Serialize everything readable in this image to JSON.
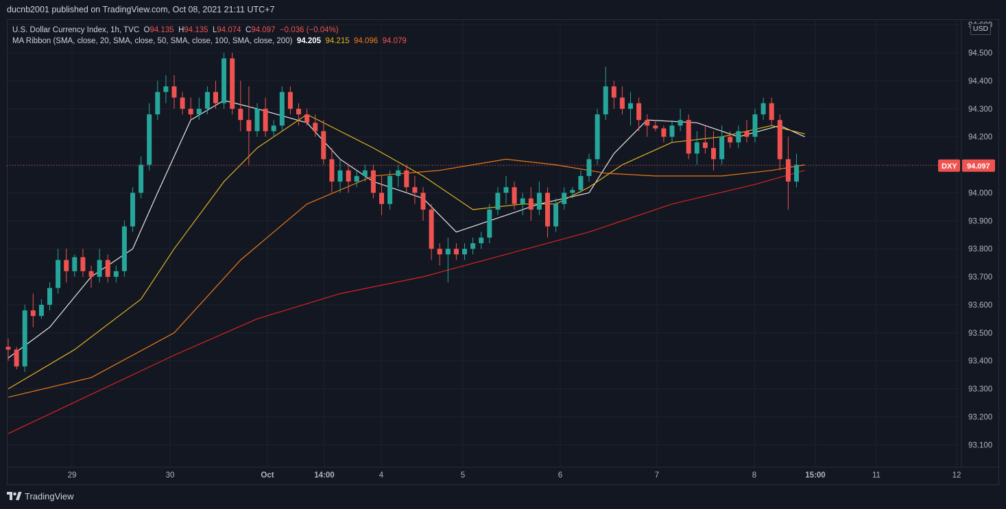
{
  "header": {
    "publisher_line": "ducnb2001 published on TradingView.com, Oct 08, 2021 21:11 UTC+7"
  },
  "legend": {
    "symbol": "U.S. Dollar Currency Index, 1h, TVC",
    "o_label": "O",
    "o_value": "94.135",
    "h_label": "H",
    "h_value": "94.135",
    "l_label": "L",
    "l_value": "94.074",
    "c_label": "C",
    "c_value": "94.097",
    "change": "−0.036 (−0.04%)",
    "ma_ribbon": "MA Ribbon (SMA, close, 20, SMA, close, 50, SMA, close, 100, SMA, close, 200)",
    "ma20": "94.205",
    "ma50": "94.215",
    "ma100": "94.096",
    "ma200": "94.079"
  },
  "currency_label": "USD",
  "price_tag": {
    "symbol": "DXY",
    "value": "94.097"
  },
  "footer": {
    "brand": "TradingView"
  },
  "colors": {
    "background": "#131722",
    "grid": "#1e222d",
    "up": "#26a69a",
    "down": "#ef5350",
    "ma20": "#e8e8e8",
    "ma50": "#e3b421",
    "ma100": "#f07a16",
    "ma200": "#d9231e",
    "price_line": "#ef5350"
  },
  "chart_data": {
    "type": "candlestick",
    "y_axis": {
      "range": [
        93.02,
        94.62
      ],
      "ticks": [
        "94.600",
        "94.500",
        "94.400",
        "94.300",
        "94.200",
        "94.100",
        "94.000",
        "93.900",
        "93.800",
        "93.700",
        "93.600",
        "93.500",
        "93.400",
        "93.300",
        "93.200",
        "93.100"
      ],
      "tick_values": [
        94.6,
        94.5,
        94.4,
        94.3,
        94.2,
        94.1,
        94.0,
        93.9,
        93.8,
        93.7,
        93.6,
        93.5,
        93.4,
        93.3,
        93.2,
        93.1
      ]
    },
    "x_axis": {
      "labels": [
        "29",
        "30",
        "Oct",
        "14:00",
        "4",
        "5",
        "6",
        "7",
        "8",
        "15:00",
        "11",
        "12"
      ],
      "bold_labels": [
        "Oct",
        "14:00",
        "15:00"
      ]
    },
    "last_price": 94.097,
    "candles": [
      [
        93.45,
        93.48,
        93.4,
        93.44
      ],
      [
        93.44,
        93.45,
        93.37,
        93.38
      ],
      [
        93.38,
        93.6,
        93.36,
        93.58
      ],
      [
        93.58,
        93.64,
        93.52,
        93.56
      ],
      [
        93.56,
        93.62,
        93.55,
        93.6
      ],
      [
        93.6,
        93.68,
        93.58,
        93.66
      ],
      [
        93.66,
        93.8,
        93.64,
        93.76
      ],
      [
        93.76,
        93.8,
        93.68,
        93.72
      ],
      [
        93.72,
        93.78,
        93.7,
        93.77
      ],
      [
        93.77,
        93.8,
        93.7,
        93.72
      ],
      [
        93.72,
        93.74,
        93.66,
        93.7
      ],
      [
        93.7,
        93.8,
        93.68,
        93.76
      ],
      [
        93.76,
        93.78,
        93.68,
        93.7
      ],
      [
        93.7,
        93.74,
        93.68,
        93.72
      ],
      [
        93.72,
        93.9,
        93.7,
        93.88
      ],
      [
        93.88,
        94.02,
        93.86,
        94.0
      ],
      [
        94.0,
        94.13,
        93.98,
        94.1
      ],
      [
        94.1,
        94.32,
        94.08,
        94.28
      ],
      [
        94.28,
        94.4,
        94.26,
        94.36
      ],
      [
        94.36,
        94.42,
        94.32,
        94.38
      ],
      [
        94.38,
        94.42,
        94.3,
        94.34
      ],
      [
        94.34,
        94.36,
        94.28,
        94.3
      ],
      [
        94.3,
        94.34,
        94.26,
        94.28
      ],
      [
        94.28,
        94.34,
        94.26,
        94.3
      ],
      [
        94.3,
        94.38,
        94.28,
        94.36
      ],
      [
        94.36,
        94.4,
        94.3,
        94.32
      ],
      [
        94.32,
        94.5,
        94.3,
        94.48
      ],
      [
        94.48,
        94.5,
        94.28,
        94.3
      ],
      [
        94.3,
        94.4,
        94.22,
        94.26
      ],
      [
        94.26,
        94.38,
        94.1,
        94.22
      ],
      [
        94.22,
        94.32,
        94.2,
        94.3
      ],
      [
        94.3,
        94.34,
        94.2,
        94.22
      ],
      [
        94.22,
        94.26,
        94.2,
        94.24
      ],
      [
        94.24,
        94.38,
        94.22,
        94.36
      ],
      [
        94.36,
        94.38,
        94.28,
        94.3
      ],
      [
        94.3,
        94.32,
        94.24,
        94.28
      ],
      [
        94.28,
        94.3,
        94.24,
        94.25
      ],
      [
        94.25,
        94.28,
        94.2,
        94.22
      ],
      [
        94.22,
        94.26,
        94.1,
        94.12
      ],
      [
        94.12,
        94.16,
        94.0,
        94.04
      ],
      [
        94.04,
        94.12,
        94.0,
        94.08
      ],
      [
        94.08,
        94.1,
        94.0,
        94.04
      ],
      [
        94.04,
        94.08,
        94.02,
        94.06
      ],
      [
        94.06,
        94.1,
        94.04,
        94.08
      ],
      [
        94.08,
        94.1,
        93.98,
        94.0
      ],
      [
        94.0,
        94.06,
        93.92,
        93.96
      ],
      [
        93.96,
        94.08,
        93.94,
        94.06
      ],
      [
        94.06,
        94.1,
        94.02,
        94.08
      ],
      [
        94.08,
        94.1,
        94.0,
        94.02
      ],
      [
        94.02,
        94.06,
        93.96,
        94.0
      ],
      [
        94.0,
        94.02,
        93.9,
        93.94
      ],
      [
        93.94,
        93.96,
        93.76,
        93.8
      ],
      [
        93.8,
        93.82,
        93.74,
        93.78
      ],
      [
        93.78,
        93.84,
        93.68,
        93.8
      ],
      [
        93.8,
        93.82,
        93.76,
        93.78
      ],
      [
        93.78,
        93.82,
        93.76,
        93.8
      ],
      [
        93.8,
        93.84,
        93.78,
        93.82
      ],
      [
        93.82,
        93.86,
        93.8,
        93.84
      ],
      [
        93.84,
        93.96,
        93.82,
        93.94
      ],
      [
        93.94,
        94.02,
        93.92,
        94.0
      ],
      [
        94.0,
        94.06,
        93.96,
        94.02
      ],
      [
        94.02,
        94.04,
        93.94,
        93.96
      ],
      [
        93.96,
        94.0,
        93.92,
        93.98
      ],
      [
        93.98,
        94.02,
        93.9,
        93.94
      ],
      [
        93.94,
        94.04,
        93.92,
        94.0
      ],
      [
        94.0,
        94.02,
        93.84,
        93.88
      ],
      [
        93.88,
        93.98,
        93.86,
        93.96
      ],
      [
        93.96,
        94.02,
        93.94,
        94.0
      ],
      [
        94.0,
        94.02,
        93.98,
        94.01
      ],
      [
        94.01,
        94.08,
        94.0,
        94.06
      ],
      [
        94.06,
        94.14,
        94.04,
        94.12
      ],
      [
        94.12,
        94.3,
        94.1,
        94.28
      ],
      [
        94.28,
        94.45,
        94.26,
        94.38
      ],
      [
        94.38,
        94.4,
        94.3,
        94.34
      ],
      [
        94.34,
        94.38,
        94.28,
        94.3
      ],
      [
        94.3,
        94.36,
        94.24,
        94.32
      ],
      [
        94.32,
        94.34,
        94.22,
        94.26
      ],
      [
        94.26,
        94.28,
        94.2,
        94.24
      ],
      [
        94.24,
        94.26,
        94.22,
        94.23
      ],
      [
        94.23,
        94.24,
        94.18,
        94.2
      ],
      [
        94.2,
        94.26,
        94.18,
        94.24
      ],
      [
        94.24,
        94.3,
        94.22,
        94.26
      ],
      [
        94.26,
        94.28,
        94.12,
        94.14
      ],
      [
        94.14,
        94.22,
        94.1,
        94.18
      ],
      [
        94.18,
        94.24,
        94.14,
        94.16
      ],
      [
        94.16,
        94.22,
        94.08,
        94.12
      ],
      [
        94.12,
        94.24,
        94.1,
        94.2
      ],
      [
        94.2,
        94.22,
        94.16,
        94.18
      ],
      [
        94.18,
        94.24,
        94.16,
        94.22
      ],
      [
        94.22,
        94.26,
        94.18,
        94.2
      ],
      [
        94.2,
        94.3,
        94.18,
        94.28
      ],
      [
        94.28,
        94.34,
        94.26,
        94.32
      ],
      [
        94.32,
        94.34,
        94.24,
        94.26
      ],
      [
        94.26,
        94.28,
        94.08,
        94.12
      ],
      [
        94.12,
        94.2,
        93.94,
        94.04
      ],
      [
        94.04,
        94.14,
        94.02,
        94.1
      ]
    ],
    "moving_averages": [
      {
        "name": "SMA 20",
        "color": "#e8e8e8",
        "x": [
          0,
          5,
          10,
          15,
          18,
          22,
          26,
          30,
          36,
          40,
          44,
          50,
          54,
          58,
          64,
          70,
          73,
          77,
          83,
          88,
          93,
          96
        ],
        "y": [
          93.41,
          93.52,
          93.7,
          93.8,
          94.0,
          94.26,
          94.33,
          94.3,
          94.25,
          94.12,
          94.04,
          93.98,
          93.86,
          93.9,
          93.96,
          94.0,
          94.14,
          94.26,
          94.25,
          94.2,
          94.24,
          94.2
        ]
      },
      {
        "name": "SMA 50",
        "color": "#e3b421",
        "x": [
          0,
          8,
          16,
          20,
          26,
          30,
          36,
          40,
          44,
          50,
          56,
          62,
          66,
          70,
          74,
          80,
          86,
          92,
          96
        ],
        "y": [
          93.3,
          93.44,
          93.62,
          93.8,
          94.04,
          94.16,
          94.28,
          94.22,
          94.16,
          94.06,
          93.94,
          93.96,
          93.96,
          94.02,
          94.1,
          94.18,
          94.2,
          94.24,
          94.21
        ]
      },
      {
        "name": "SMA 100",
        "color": "#f07a16",
        "x": [
          0,
          10,
          20,
          28,
          36,
          44,
          52,
          60,
          66,
          72,
          78,
          86,
          92,
          96
        ],
        "y": [
          93.27,
          93.34,
          93.5,
          93.76,
          93.96,
          94.06,
          94.08,
          94.12,
          94.1,
          94.07,
          94.06,
          94.06,
          94.08,
          94.1
        ]
      },
      {
        "name": "SMA 200",
        "color": "#d9231e",
        "x": [
          0,
          10,
          20,
          30,
          40,
          50,
          60,
          70,
          80,
          90,
          96
        ],
        "y": [
          93.14,
          93.28,
          93.42,
          93.55,
          93.64,
          93.7,
          93.78,
          93.86,
          93.96,
          94.03,
          94.08
        ]
      }
    ]
  }
}
